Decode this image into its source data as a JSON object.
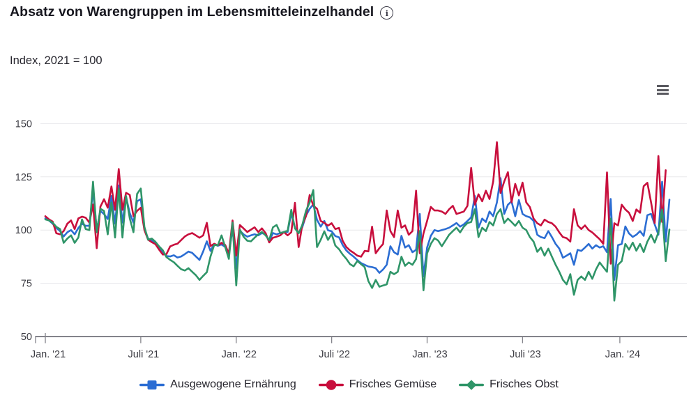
{
  "header": {
    "title": "Absatz von Warengruppen im Lebensmitteleinzelhandel",
    "info_icon_glyph": "i"
  },
  "subtitle": "Index, 2021 = 100",
  "toolbar": {
    "menu_icon": "hamburger-menu"
  },
  "colors": {
    "blue": "#2b6dd3",
    "red": "#c80f3d",
    "green": "#2f9568",
    "grid": "#e8e8eb",
    "axis": "#83838a",
    "tick_text": "#3b3b42",
    "title_text": "#17171f"
  },
  "chart_data": {
    "type": "line",
    "title": "Absatz von Warengruppen im Lebensmitteleinzelhandel",
    "subtitle": "Index, 2021 = 100",
    "x_unit": "week",
    "x_start": "2021-01-03",
    "x_step_days": 7,
    "x_tick_labels": [
      "Jan. '21",
      "Juli '21",
      "Jan. '22",
      "Juli '22",
      "Jan. '23",
      "Juli '23",
      "Jan. '24"
    ],
    "x_tick_week_index": [
      0,
      26,
      52,
      78,
      104,
      130,
      156.5
    ],
    "y_ticks": [
      150,
      125,
      100,
      75,
      50
    ],
    "ylim": [
      50,
      150
    ],
    "grid": "horizontal",
    "legend_position": "bottom",
    "series": [
      {
        "name": "Ausgewogene Ernährung",
        "color_key": "blue",
        "marker": "square",
        "values": [
          105.5,
          104.5,
          103,
          101,
          99.5,
          97,
          99,
          100,
          98,
          101,
          103,
          102,
          102,
          119,
          100,
          109,
          107.5,
          105.2,
          116,
          103,
          121,
          103.5,
          115.5,
          108,
          103.5,
          113.5,
          114.5,
          100.5,
          96,
          95,
          93.6,
          91.5,
          89.8,
          87.8,
          87.6,
          88.2,
          87.1,
          87.6,
          88.7,
          89.9,
          89.3,
          87.6,
          86,
          90,
          94.7,
          90.2,
          93.5,
          92.6,
          93.3,
          92,
          88.3,
          101,
          82,
          99.7,
          98,
          96.9,
          97.5,
          98,
          97.5,
          98.6,
          98,
          94.7,
          98.6,
          98,
          98.6,
          99.1,
          99.1,
          107.9,
          101,
          98.6,
          101.3,
          106.8,
          110,
          112,
          104.8,
          101.6,
          104.3,
          99.9,
          99.4,
          97.2,
          96.6,
          93,
          90.4,
          88.8,
          87.5,
          85.9,
          84.5,
          83.7,
          82.9,
          82.6,
          82.1,
          79.9,
          81.5,
          83.7,
          92.4,
          89.6,
          88.5,
          97.3,
          91.8,
          92.9,
          89.6,
          90.7,
          107.6,
          78.2,
          91.8,
          97.3,
          100,
          99.5,
          100,
          100.5,
          101.1,
          102.2,
          103.3,
          101.6,
          102.7,
          104.3,
          106,
          116,
          101.1,
          105.4,
          103.8,
          108.7,
          106.5,
          113,
          124.4,
          107.6,
          111.9,
          113.5,
          106.5,
          114.1,
          107.6,
          106.5,
          106,
          104.3,
          97.8,
          96.7,
          96.2,
          99.5,
          96.7,
          93.5,
          91.3,
          87,
          88,
          89.1,
          83.7,
          90.7,
          90.2,
          91.8,
          93.5,
          91.3,
          92.9,
          91.8,
          92.4,
          89.6,
          114.6,
          76.6,
          92.9,
          93.5,
          101.7,
          98.4,
          96.8,
          97.8,
          99.5,
          97.3,
          107,
          107.6,
          102.7,
          97.8,
          122.7,
          94.6,
          114.3
        ]
      },
      {
        "name": "Frisches Gemüse",
        "color_key": "red",
        "marker": "circle",
        "values": [
          106.5,
          105,
          104,
          98.5,
          98,
          99.5,
          103,
          104.5,
          100.5,
          105.5,
          106.3,
          105.8,
          103.5,
          112,
          91.5,
          111,
          114.5,
          110.5,
          120.5,
          109.5,
          128.7,
          109.5,
          117.5,
          116.5,
          106.5,
          109,
          110.5,
          100,
          95.5,
          94.3,
          93.4,
          90.8,
          88.5,
          88.7,
          92.3,
          93.1,
          93.6,
          95.3,
          97,
          98,
          98.6,
          97.5,
          96.4,
          97.5,
          103.4,
          92.5,
          93.6,
          92.8,
          94,
          93,
          88.9,
          104.5,
          88,
          102.4,
          100.8,
          99.1,
          100.2,
          101.3,
          99.1,
          100.8,
          98.6,
          94.2,
          96.4,
          96.9,
          97.5,
          99.1,
          97.5,
          99,
          112.8,
          92,
          102.4,
          106.5,
          116.5,
          111.5,
          110,
          104.3,
          103.4,
          102.1,
          103.2,
          100.5,
          101,
          95,
          92,
          90.4,
          89.3,
          88,
          87.5,
          90.2,
          90,
          101.6,
          89.1,
          91.5,
          93.5,
          109.2,
          99.5,
          96.7,
          109.2,
          101.1,
          102.2,
          97.8,
          99.5,
          118.5,
          89.1,
          98.4,
          104.3,
          110.9,
          109.2,
          109.2,
          108.7,
          107.6,
          109.8,
          111.4,
          107.6,
          108.1,
          108.7,
          111.4,
          129.2,
          111.9,
          116.8,
          113.5,
          118.5,
          114.6,
          122.8,
          141.3,
          117.4,
          122.8,
          127.2,
          113,
          121.7,
          116.3,
          122.3,
          113,
          110.8,
          105.4,
          103.2,
          102.2,
          104.9,
          103.8,
          103.2,
          101.6,
          98.9,
          96.7,
          96.2,
          94.6,
          109.8,
          102.2,
          100.5,
          102.2,
          100,
          98.9,
          97.3,
          95.7,
          93.5,
          127.1,
          84.2,
          103.2,
          102.2,
          111.9,
          109.7,
          108.1,
          104.3,
          109.7,
          108.1,
          120.6,
          122.2,
          113,
          103.3,
          134.8,
          103.8,
          128.1
        ]
      },
      {
        "name": "Frisches Obst",
        "color_key": "green",
        "marker": "diamond",
        "values": [
          105,
          104.5,
          103.5,
          101.5,
          100.5,
          94,
          96,
          97.5,
          94,
          96.5,
          105,
          100.5,
          100,
          122.7,
          99,
          110,
          109,
          98,
          113,
          96.5,
          119.5,
          96.5,
          116,
          105.5,
          99,
          117,
          119.5,
          101.5,
          95.5,
          96,
          94.5,
          92.3,
          90.5,
          87.3,
          86,
          84.9,
          83.2,
          81.6,
          81,
          82.1,
          80.4,
          78.8,
          76.6,
          78.5,
          80.2,
          87.6,
          93.1,
          92.8,
          97.5,
          92,
          86.5,
          103.5,
          74,
          100.2,
          96.9,
          95,
          94.7,
          96.4,
          98,
          99.1,
          97.5,
          95.3,
          101.3,
          102.4,
          98.6,
          99.1,
          99.7,
          109.5,
          100.8,
          98.5,
          102.4,
          109,
          113,
          118.8,
          92,
          95.4,
          99.4,
          95.4,
          98.2,
          92.7,
          91,
          88.5,
          86.5,
          84,
          83,
          85.5,
          84,
          82.6,
          76,
          72.8,
          76.6,
          73.4,
          74,
          74.5,
          80.4,
          79.3,
          80.4,
          87.5,
          83.2,
          84.8,
          83.7,
          86.4,
          99.5,
          71.7,
          89.1,
          93.5,
          96.2,
          95.1,
          92.4,
          95.1,
          97.8,
          99.5,
          101.1,
          98.9,
          101.6,
          103.3,
          103.8,
          109.8,
          96.7,
          101.1,
          99.5,
          103.8,
          102.2,
          107.6,
          109.8,
          103.3,
          105.4,
          103.8,
          102,
          104.3,
          101.1,
          100,
          96.7,
          94.6,
          89.8,
          91.8,
          88,
          91.3,
          87.5,
          83.7,
          80.4,
          76.6,
          74.5,
          79.3,
          69.6,
          76.6,
          78.2,
          76.6,
          80.4,
          77.1,
          81.5,
          84.8,
          82.6,
          80.4,
          105.4,
          66.9,
          83.7,
          85.4,
          93.5,
          90.8,
          94.1,
          90.3,
          93.5,
          89.7,
          94.6,
          97.8,
          94.1,
          98.9,
          109.7,
          85.4,
          100.3
        ]
      }
    ]
  }
}
